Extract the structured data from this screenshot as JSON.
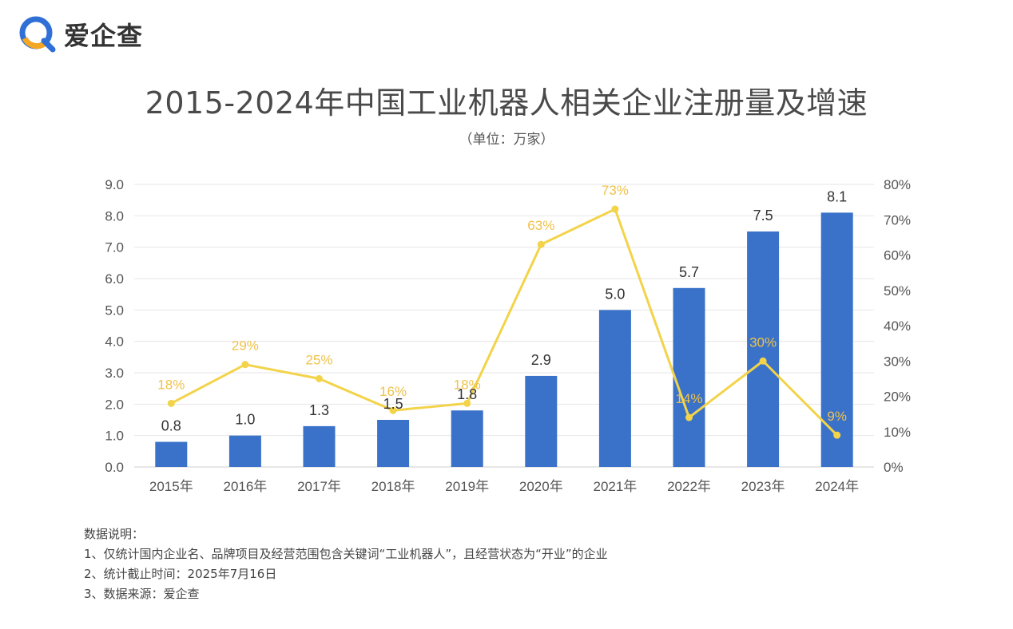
{
  "brand": {
    "name": "爱企查",
    "logo_icon": "q-magnifier-icon",
    "colors": {
      "blue": "#2f6fd6",
      "orange": "#f5a623"
    }
  },
  "header": {
    "title": "2015-2024年中国工业机器人相关企业注册量及增速",
    "unit": "（单位：万家）"
  },
  "chart_data": {
    "type": "bar",
    "categories": [
      "2015年",
      "2016年",
      "2017年",
      "2018年",
      "2019年",
      "2020年",
      "2021年",
      "2022年",
      "2023年",
      "2024年"
    ],
    "series": [
      {
        "type": "bar",
        "axis": "left",
        "color": "#3a72c9",
        "values": [
          0.8,
          1.0,
          1.3,
          1.5,
          1.8,
          2.9,
          5.0,
          5.7,
          7.5,
          8.1
        ],
        "labels": [
          "0.8",
          "1.0",
          "1.3",
          "1.5",
          "1.8",
          "2.9",
          "5.0",
          "5.7",
          "7.5",
          "8.1"
        ]
      },
      {
        "type": "line",
        "axis": "right",
        "color": "#f3d34a",
        "label_color": "#f0c24a",
        "values": [
          18,
          29,
          25,
          16,
          18,
          63,
          73,
          14,
          30,
          9
        ],
        "labels": [
          "18%",
          "29%",
          "25%",
          "16%",
          "18%",
          "63%",
          "73%",
          "14%",
          "30%",
          "9%"
        ]
      }
    ],
    "left_axis": {
      "ylim": [
        0,
        9
      ],
      "ticks": [
        "0.0",
        "1.0",
        "2.0",
        "3.0",
        "4.0",
        "5.0",
        "6.0",
        "7.0",
        "8.0",
        "9.0"
      ]
    },
    "right_axis": {
      "ylim": [
        0,
        80
      ],
      "ticks": [
        "0%",
        "10%",
        "20%",
        "30%",
        "40%",
        "50%",
        "60%",
        "70%",
        "80%"
      ]
    },
    "grid": true
  },
  "notes": {
    "heading": "数据说明：",
    "items": [
      "1、仅统计国内企业名、品牌项目及经营范围包含关键词“工业机器人”，且经营状态为“开业”的企业",
      "2、统计截止时间：2025年7月16日",
      "3、数据来源：爱企查"
    ]
  }
}
